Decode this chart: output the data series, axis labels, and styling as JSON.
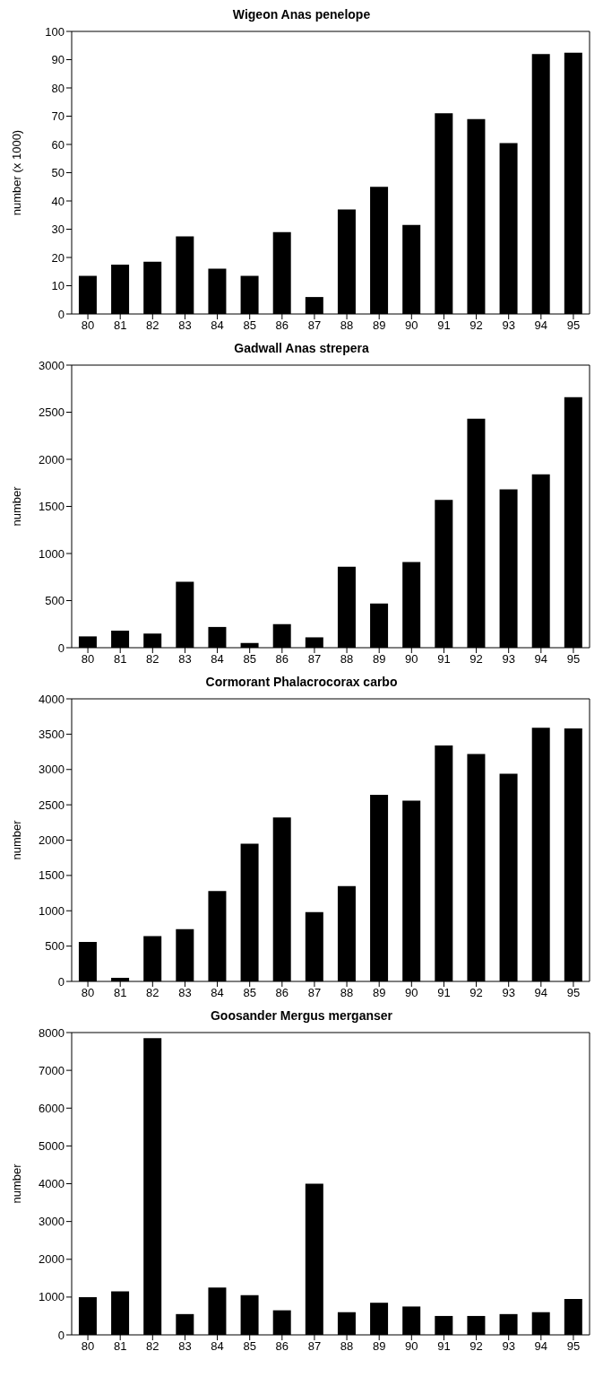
{
  "chart_data": [
    {
      "type": "bar",
      "title": "Wigeon Anas penelope",
      "ylabel": "number (x 1000)",
      "categories": [
        "80",
        "81",
        "82",
        "83",
        "84",
        "85",
        "86",
        "87",
        "88",
        "89",
        "90",
        "91",
        "92",
        "93",
        "94",
        "95"
      ],
      "values": [
        13.5,
        17.5,
        18.5,
        27.5,
        16,
        13.5,
        29,
        6,
        37,
        45,
        31.5,
        71,
        69,
        60.5,
        92,
        92.5
      ],
      "color": "#000000",
      "ylim": [
        0,
        100
      ],
      "yticks": [
        0,
        10,
        20,
        30,
        40,
        50,
        60,
        70,
        80,
        90,
        100
      ],
      "grid": false
    },
    {
      "type": "bar",
      "title": "Gadwall Anas strepera",
      "ylabel": "number",
      "categories": [
        "80",
        "81",
        "82",
        "83",
        "84",
        "85",
        "86",
        "87",
        "88",
        "89",
        "90",
        "91",
        "92",
        "93",
        "94",
        "95"
      ],
      "values": [
        120,
        180,
        150,
        700,
        220,
        50,
        250,
        110,
        860,
        470,
        910,
        1570,
        2430,
        1680,
        1840,
        2660
      ],
      "color": "#000000",
      "ylim": [
        0,
        3000
      ],
      "yticks": [
        0,
        500,
        1000,
        1500,
        2000,
        2500,
        3000
      ],
      "grid": false
    },
    {
      "type": "bar",
      "title": "Cormorant Phalacrocorax carbo",
      "ylabel": "number",
      "categories": [
        "80",
        "81",
        "82",
        "83",
        "84",
        "85",
        "86",
        "87",
        "88",
        "89",
        "90",
        "91",
        "92",
        "93",
        "94",
        "95"
      ],
      "values": [
        560,
        50,
        640,
        740,
        1280,
        1950,
        2320,
        980,
        1350,
        2640,
        2560,
        3340,
        3220,
        2940,
        3590,
        3580
      ],
      "color": "#000000",
      "ylim": [
        0,
        4000
      ],
      "yticks": [
        0,
        500,
        1000,
        1500,
        2000,
        2500,
        3000,
        3500,
        4000
      ],
      "grid": false
    },
    {
      "type": "bar",
      "title": "Goosander Mergus merganser",
      "ylabel": "number",
      "categories": [
        "80",
        "81",
        "82",
        "83",
        "84",
        "85",
        "86",
        "87",
        "88",
        "89",
        "90",
        "91",
        "92",
        "93",
        "94",
        "95"
      ],
      "values": [
        1000,
        1150,
        7850,
        550,
        1250,
        1050,
        650,
        4000,
        600,
        850,
        750,
        500,
        500,
        550,
        600,
        950
      ],
      "color": "#000000",
      "ylim": [
        0,
        8000
      ],
      "yticks": [
        0,
        1000,
        2000,
        3000,
        4000,
        5000,
        6000,
        7000,
        8000
      ],
      "grid": false
    }
  ]
}
